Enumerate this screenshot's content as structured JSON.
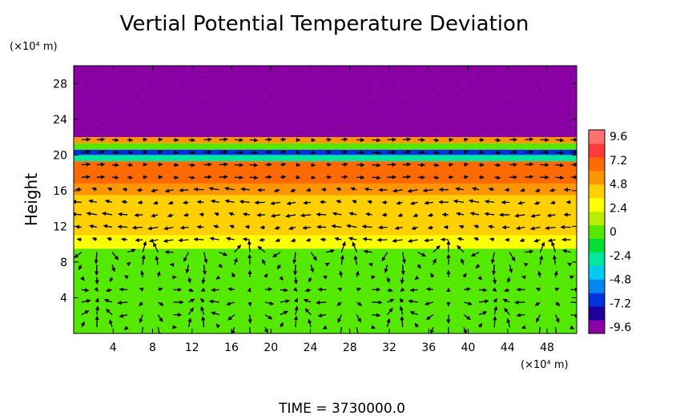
{
  "chart_data": {
    "type": "heatmap",
    "title": "Vertial Potential Temperature Deviation",
    "xlabel": "",
    "ylabel": "Height",
    "x_unit": "(×10⁴ m)",
    "y_unit": "(×10⁴ m)",
    "xlim": [
      0,
      51
    ],
    "ylim": [
      0,
      30
    ],
    "x_ticks": [
      "4",
      "8",
      "12",
      "16",
      "20",
      "24",
      "28",
      "32",
      "36",
      "40",
      "44",
      "48"
    ],
    "y_ticks": [
      "4",
      "8",
      "12",
      "16",
      "20",
      "24",
      "28"
    ],
    "colorbar": {
      "ticks": [
        "9.6",
        "7.2",
        "4.8",
        "2.4",
        "0",
        "-2.4",
        "-4.8",
        "-7.2",
        "-9.6"
      ],
      "range": [
        -9.6,
        9.6
      ],
      "colors": [
        "#8a00a5",
        "#1d0099",
        "#0033dd",
        "#0088ee",
        "#00ccee",
        "#00e8a0",
        "#00dd33",
        "#55e800",
        "#bbee00",
        "#ffff00",
        "#ffd000",
        "#ff9600",
        "#ff6a00",
        "#ff3a3a",
        "#ff7070"
      ]
    },
    "layers": [
      {
        "y0": 0,
        "y1": 9.5,
        "value": 0.6
      },
      {
        "y0": 9.5,
        "y1": 11,
        "value": 2.2
      },
      {
        "y0": 11,
        "y1": 15.5,
        "value": 3.8
      },
      {
        "y0": 15.5,
        "y1": 16.8,
        "value": 4.8
      },
      {
        "y0": 16.8,
        "y1": 19.3,
        "value": 6.4
      },
      {
        "y0": 19.3,
        "y1": 20.0,
        "value": -2.0
      },
      {
        "y0": 20.0,
        "y1": 20.6,
        "value": -7.0
      },
      {
        "y0": 20.6,
        "y1": 21.3,
        "value": 0.5
      },
      {
        "y0": 21.3,
        "y1": 22.0,
        "value": 5.0
      },
      {
        "y0": 22.0,
        "y1": 30.0,
        "value": -9.6
      }
    ]
  },
  "footer": {
    "time_label": "TIME = 3730000.0"
  }
}
